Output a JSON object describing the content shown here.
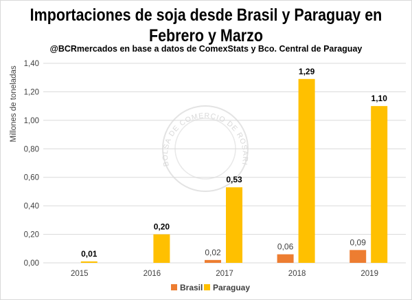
{
  "chart_data": {
    "type": "bar",
    "title": "Importaciones de soja desde Brasil y Paraguay en Febrero y Marzo",
    "subtitle": "@BCRmercados en base a datos de ComexStats y Bco. Central de Paraguay",
    "ylabel": "Millones de toneladas",
    "xlabel": "",
    "ylim": [
      0,
      1.4
    ],
    "yticks": [
      "0,00",
      "0,20",
      "0,40",
      "0,60",
      "0,80",
      "1,00",
      "1,20",
      "1,40"
    ],
    "grid": true,
    "legend": "bottom",
    "categories": [
      "2015",
      "2016",
      "2017",
      "2018",
      "2019"
    ],
    "series": [
      {
        "name": "Brasil",
        "color": "#ED7D31",
        "values": [
          0,
          0,
          0.02,
          0.06,
          0.09
        ],
        "labels": [
          null,
          null,
          "0,02",
          "0,06",
          "0,09"
        ]
      },
      {
        "name": "Paraguay",
        "color": "#FFC000",
        "values": [
          0.01,
          0.2,
          0.53,
          1.29,
          1.1
        ],
        "labels": [
          "0,01",
          "0,20",
          "0,53",
          "1,29",
          "1,10"
        ]
      }
    ],
    "watermark": "BOLSA DE COMERCIO DE ROSARIO"
  }
}
